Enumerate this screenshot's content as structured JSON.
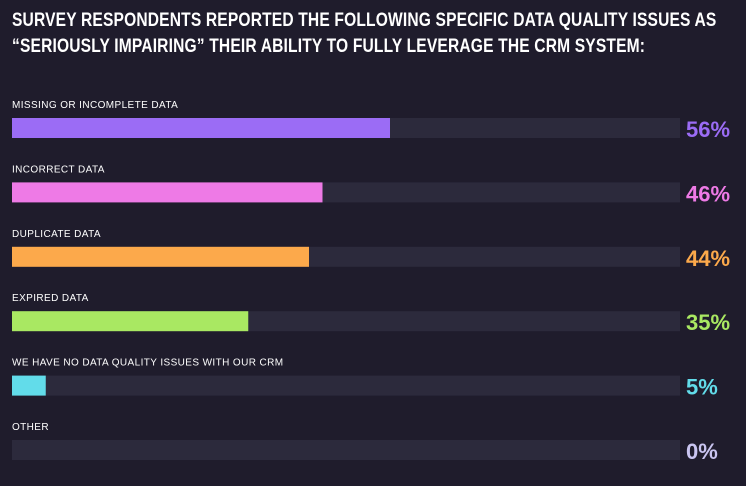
{
  "title_lines": [
    "SURVEY RESPONDENTS REPORTED THE FOLLOWING SPECIFIC DATA QUALITY ISSUES AS",
    "“SERIOUSLY IMPAIRING” THEIR ABILITY TO FULLY LEVERAGE THE CRM SYSTEM:"
  ],
  "colors": {
    "background": "#1f1c2c",
    "track": "#2c2a3c"
  },
  "chart_data": {
    "type": "bar",
    "orientation": "horizontal",
    "title": "SURVEY RESPONDENTS REPORTED THE FOLLOWING SPECIFIC DATA QUALITY ISSUES AS “SERIOUSLY IMPAIRING” THEIR ABILITY TO FULLY LEVERAGE THE CRM SYSTEM:",
    "categories": [
      "MISSING OR INCOMPLETE DATA",
      "INCORRECT DATA",
      "DUPLICATE DATA",
      "EXPIRED DATA",
      "WE HAVE NO DATA QUALITY ISSUES WITH OUR CRM",
      "OTHER"
    ],
    "values": [
      56,
      46,
      44,
      35,
      5,
      0
    ],
    "value_labels": [
      "56%",
      "46%",
      "44%",
      "35%",
      "5%",
      "0%"
    ],
    "colors": [
      "#9b6cf5",
      "#ee7ae6",
      "#fca94b",
      "#a9e862",
      "#62dcea",
      "#c9c4f0"
    ],
    "xlim": [
      0,
      100
    ],
    "unit": "%",
    "grid": false,
    "legend": "none"
  }
}
